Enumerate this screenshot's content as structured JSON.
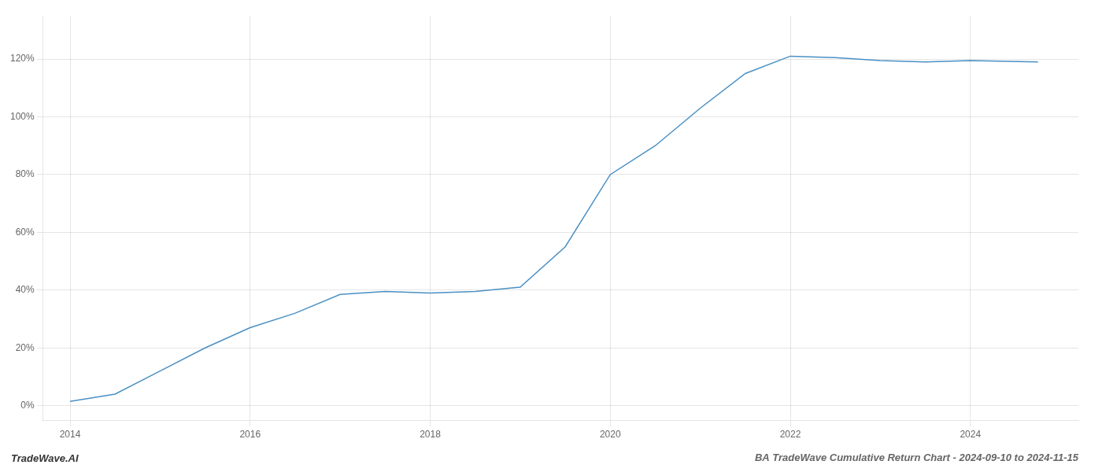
{
  "chart_data": {
    "type": "line",
    "title": "BA TradeWave Cumulative Return Chart - 2024-09-10 to 2024-11-15",
    "annotations": [
      "TradeWave.AI"
    ],
    "x": [
      2014.0,
      2014.5,
      2015.0,
      2015.5,
      2016.0,
      2016.5,
      2017.0,
      2017.5,
      2018.0,
      2018.5,
      2019.0,
      2019.5,
      2020.0,
      2020.5,
      2021.0,
      2021.5,
      2022.0,
      2022.5,
      2023.0,
      2023.5,
      2024.0,
      2024.75
    ],
    "values": [
      1.5,
      4.0,
      12.0,
      20.0,
      27.0,
      32.0,
      38.5,
      39.5,
      39.0,
      39.5,
      41.0,
      55.0,
      80.0,
      90.0,
      103.0,
      115.0,
      121.0,
      120.5,
      119.5,
      119.0,
      119.5,
      119.0
    ],
    "color": "#4a90c4",
    "xlim": [
      2013.7,
      2025.2
    ],
    "xticks": [
      2014,
      2016,
      2018,
      2020,
      2022,
      2024
    ],
    "ylim": [
      -5,
      135
    ],
    "yticks": [
      {
        "value": 0,
        "label": "0%"
      },
      {
        "value": 20,
        "label": "20%"
      },
      {
        "value": 40,
        "label": "40%"
      },
      {
        "value": 60,
        "label": "60%"
      },
      {
        "value": 80,
        "label": "80%"
      },
      {
        "value": 100,
        "label": "100%"
      },
      {
        "value": 120,
        "label": "120%"
      }
    ],
    "grid": true
  }
}
